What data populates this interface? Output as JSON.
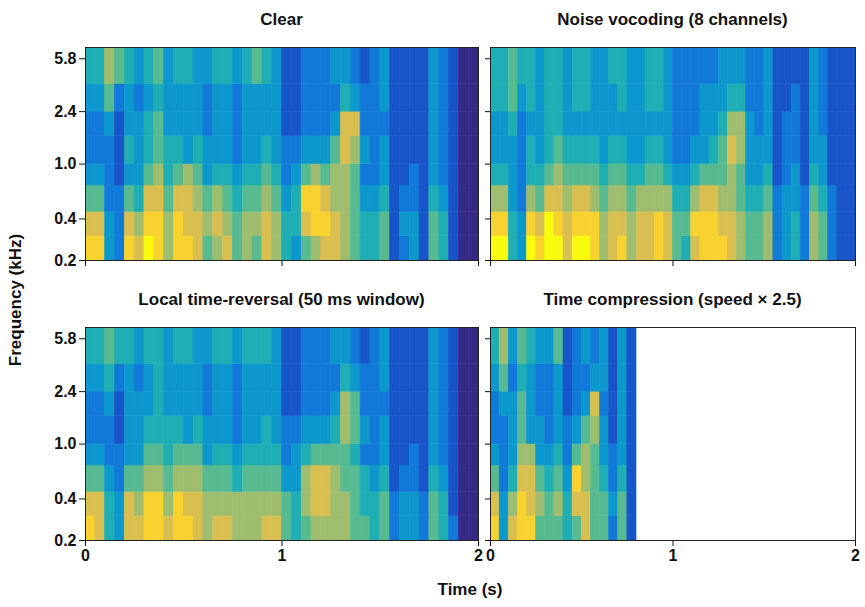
{
  "xlabel": "Time (s)",
  "ylabel": "Frequency (kHz)",
  "chart_data": [
    {
      "type": "heatmap",
      "title": "Clear",
      "log": "y",
      "tick_labels": "y",
      "xlim": [
        0,
        2
      ],
      "xticks": [
        0,
        1,
        2
      ],
      "ylim": [
        0.2,
        7.0
      ],
      "yticks": [
        0.2,
        0.4,
        {
          "value": 1.0,
          "label": "1.0"
        },
        2.4,
        5.8
      ],
      "x_edges": [
        0,
        0.05,
        0.1,
        0.15,
        0.2,
        0.25,
        0.3,
        0.35,
        0.4,
        0.45,
        0.5,
        0.55,
        0.6,
        0.65,
        0.7,
        0.75,
        0.8,
        0.85,
        0.9,
        0.95,
        1,
        1.05,
        1.1,
        1.15,
        1.2,
        1.25,
        1.3,
        1.35,
        1.4,
        1.45,
        1.5,
        1.55,
        1.6,
        1.65,
        1.7,
        1.75,
        1.8,
        1.85,
        1.9,
        1.95,
        2
      ],
      "y_edges": [
        0.2,
        0.3,
        0.45,
        0.7,
        1.0,
        1.6,
        2.4,
        3.8,
        7.0
      ],
      "cells": [
        [
          8,
          8,
          3,
          2,
          8,
          7,
          9,
          8,
          6,
          8,
          8,
          7,
          5,
          6,
          7,
          5,
          6,
          5,
          7,
          6,
          4,
          3,
          5,
          6,
          7,
          7,
          6,
          5,
          4,
          4,
          5,
          1,
          2,
          3,
          1,
          5,
          4,
          1,
          0,
          0
        ],
        [
          7,
          7,
          3,
          2,
          7,
          6,
          8,
          8,
          6,
          8,
          7,
          7,
          6,
          7,
          6,
          5,
          6,
          6,
          7,
          6,
          4,
          4,
          7,
          8,
          8,
          7,
          6,
          5,
          4,
          4,
          5,
          1,
          3,
          3,
          1,
          5,
          4,
          1,
          0,
          0
        ],
        [
          5,
          5,
          2,
          2,
          5,
          4,
          7,
          7,
          5,
          7,
          7,
          6,
          5,
          6,
          5,
          4,
          5,
          5,
          6,
          5,
          3,
          4,
          8,
          8,
          7,
          6,
          6,
          5,
          3,
          3,
          4,
          1,
          2,
          2,
          1,
          4,
          3,
          1,
          0,
          0
        ],
        [
          3,
          3,
          2,
          1,
          3,
          3,
          5,
          6,
          4,
          5,
          6,
          5,
          3,
          4,
          4,
          3,
          4,
          4,
          5,
          4,
          2,
          3,
          5,
          6,
          5,
          6,
          6,
          5,
          2,
          2,
          3,
          1,
          1,
          2,
          1,
          3,
          2,
          1,
          0,
          0
        ],
        [
          2,
          2,
          2,
          1,
          4,
          3,
          4,
          5,
          4,
          4,
          3,
          4,
          3,
          3,
          3,
          2,
          3,
          3,
          4,
          3,
          2,
          2,
          3,
          3,
          3,
          5,
          7,
          6,
          3,
          2,
          3,
          1,
          1,
          1,
          1,
          3,
          2,
          1,
          0,
          0
        ],
        [
          2,
          2,
          3,
          1,
          3,
          3,
          4,
          5,
          3,
          3,
          3,
          3,
          2,
          3,
          3,
          2,
          3,
          3,
          3,
          3,
          1,
          1,
          2,
          2,
          2,
          3,
          7,
          7,
          2,
          2,
          2,
          1,
          1,
          1,
          1,
          3,
          2,
          1,
          0,
          0
        ],
        [
          3,
          3,
          5,
          2,
          3,
          2,
          3,
          4,
          3,
          3,
          3,
          3,
          2,
          3,
          3,
          2,
          3,
          3,
          3,
          3,
          1,
          1,
          2,
          2,
          2,
          2,
          4,
          3,
          2,
          2,
          3,
          1,
          1,
          1,
          1,
          3,
          2,
          1,
          0,
          0
        ],
        [
          4,
          4,
          6,
          5,
          4,
          3,
          4,
          5,
          3,
          4,
          4,
          3,
          3,
          4,
          4,
          3,
          4,
          5,
          4,
          3,
          1,
          1,
          2,
          2,
          2,
          3,
          3,
          2,
          1,
          2,
          3,
          1,
          1,
          1,
          1,
          3,
          2,
          1,
          0,
          0
        ]
      ]
    },
    {
      "type": "heatmap",
      "title": "Noise vocoding (8 channels)",
      "log": "y",
      "tick_labels": false,
      "xlim": [
        0,
        2
      ],
      "xticks": [
        0,
        1,
        2
      ],
      "ylim": [
        0.2,
        7.0
      ],
      "yticks": [
        0.2,
        0.4,
        {
          "value": 1.0,
          "label": "1.0"
        },
        2.4,
        5.8
      ],
      "x_edges": [
        0,
        0.05,
        0.1,
        0.15,
        0.2,
        0.25,
        0.3,
        0.35,
        0.4,
        0.45,
        0.5,
        0.55,
        0.6,
        0.65,
        0.7,
        0.75,
        0.8,
        0.85,
        0.9,
        0.95,
        1,
        1.05,
        1.1,
        1.15,
        1.2,
        1.25,
        1.3,
        1.35,
        1.4,
        1.45,
        1.5,
        1.55,
        1.6,
        1.65,
        1.7,
        1.75,
        1.8,
        1.85,
        1.9,
        1.95,
        2
      ],
      "y_edges": [
        0.2,
        0.3,
        0.45,
        0.7,
        1.0,
        1.6,
        2.4,
        3.8,
        7.0
      ],
      "cells": [
        [
          9,
          9,
          4,
          3,
          9,
          8,
          9,
          9,
          7,
          9,
          9,
          8,
          6,
          7,
          8,
          6,
          7,
          7,
          8,
          7,
          5,
          4,
          7,
          8,
          8,
          8,
          7,
          6,
          5,
          5,
          6,
          2,
          3,
          4,
          2,
          6,
          5,
          2,
          1,
          1
        ],
        [
          8,
          8,
          4,
          3,
          8,
          7,
          9,
          8,
          7,
          8,
          8,
          8,
          6,
          7,
          7,
          6,
          7,
          7,
          8,
          7,
          5,
          5,
          8,
          8,
          8,
          7,
          7,
          6,
          5,
          5,
          6,
          2,
          3,
          4,
          2,
          6,
          5,
          2,
          1,
          1
        ],
        [
          6,
          6,
          3,
          2,
          6,
          5,
          7,
          7,
          6,
          7,
          7,
          6,
          5,
          6,
          6,
          5,
          6,
          6,
          6,
          6,
          4,
          4,
          6,
          7,
          7,
          6,
          6,
          5,
          4,
          4,
          5,
          2,
          3,
          3,
          2,
          5,
          4,
          2,
          1,
          1
        ],
        [
          4,
          4,
          3,
          2,
          4,
          4,
          5,
          6,
          5,
          5,
          5,
          5,
          4,
          5,
          5,
          4,
          4,
          5,
          5,
          4,
          3,
          3,
          4,
          5,
          5,
          5,
          6,
          5,
          3,
          3,
          4,
          1,
          2,
          3,
          1,
          4,
          3,
          1,
          1,
          1
        ],
        [
          3,
          3,
          3,
          2,
          4,
          3,
          4,
          5,
          4,
          4,
          4,
          4,
          3,
          4,
          4,
          3,
          3,
          4,
          4,
          3,
          2,
          2,
          3,
          3,
          4,
          5,
          7,
          6,
          3,
          3,
          3,
          1,
          2,
          2,
          1,
          3,
          3,
          1,
          1,
          1
        ],
        [
          3,
          3,
          4,
          2,
          3,
          3,
          4,
          4,
          3,
          3,
          3,
          3,
          3,
          3,
          3,
          3,
          3,
          3,
          3,
          3,
          2,
          2,
          2,
          3,
          3,
          4,
          6,
          6,
          3,
          2,
          3,
          1,
          2,
          2,
          1,
          3,
          2,
          1,
          1,
          1
        ],
        [
          4,
          4,
          5,
          3,
          4,
          3,
          4,
          4,
          3,
          4,
          4,
          3,
          3,
          3,
          4,
          3,
          3,
          4,
          4,
          3,
          2,
          2,
          2,
          3,
          3,
          3,
          4,
          4,
          2,
          2,
          3,
          1,
          1,
          2,
          1,
          3,
          2,
          1,
          1,
          1
        ],
        [
          4,
          4,
          5,
          4,
          4,
          3,
          4,
          4,
          3,
          4,
          4,
          3,
          3,
          4,
          4,
          3,
          3,
          4,
          4,
          3,
          2,
          2,
          2,
          2,
          2,
          3,
          3,
          3,
          2,
          2,
          3,
          1,
          1,
          1,
          1,
          3,
          2,
          1,
          1,
          1
        ]
      ]
    },
    {
      "type": "heatmap",
      "title": "Local time-reversal (50 ms window)",
      "log": "y",
      "tick_labels": true,
      "xlim": [
        0,
        2
      ],
      "xticks": [
        0,
        1,
        2
      ],
      "ylim": [
        0.2,
        7.0
      ],
      "yticks": [
        0.2,
        0.4,
        {
          "value": 1.0,
          "label": "1.0"
        },
        2.4,
        5.8
      ],
      "x_edges": [
        0,
        0.05,
        0.1,
        0.15,
        0.2,
        0.25,
        0.3,
        0.35,
        0.4,
        0.45,
        0.5,
        0.55,
        0.6,
        0.65,
        0.7,
        0.75,
        0.8,
        0.85,
        0.9,
        0.95,
        1,
        1.05,
        1.1,
        1.15,
        1.2,
        1.25,
        1.3,
        1.35,
        1.4,
        1.45,
        1.5,
        1.55,
        1.6,
        1.65,
        1.7,
        1.75,
        1.8,
        1.85,
        1.9,
        1.95,
        2
      ],
      "y_edges": [
        0.2,
        0.3,
        0.45,
        0.7,
        1.0,
        1.6,
        2.4,
        3.8,
        7.0
      ],
      "cells": [
        [
          8,
          7,
          4,
          3,
          7,
          7,
          8,
          8,
          7,
          8,
          8,
          7,
          6,
          7,
          7,
          6,
          6,
          6,
          7,
          7,
          5,
          4,
          5,
          6,
          6,
          6,
          6,
          5,
          5,
          4,
          5,
          2,
          3,
          3,
          2,
          5,
          4,
          2,
          0,
          0
        ],
        [
          7,
          7,
          4,
          3,
          7,
          6,
          8,
          8,
          6,
          8,
          7,
          7,
          6,
          6,
          6,
          6,
          6,
          6,
          6,
          6,
          5,
          4,
          6,
          7,
          7,
          6,
          6,
          5,
          4,
          4,
          5,
          2,
          3,
          3,
          2,
          5,
          4,
          1,
          0,
          0
        ],
        [
          5,
          5,
          3,
          2,
          5,
          5,
          6,
          6,
          5,
          6,
          6,
          6,
          5,
          5,
          5,
          4,
          5,
          5,
          5,
          5,
          3,
          3,
          6,
          7,
          7,
          6,
          5,
          5,
          4,
          3,
          4,
          1,
          2,
          2,
          1,
          4,
          3,
          1,
          0,
          0
        ],
        [
          3,
          3,
          2,
          2,
          3,
          3,
          5,
          5,
          4,
          5,
          5,
          5,
          3,
          4,
          4,
          3,
          4,
          4,
          4,
          4,
          2,
          3,
          4,
          5,
          5,
          5,
          5,
          4,
          2,
          2,
          3,
          1,
          1,
          2,
          1,
          3,
          2,
          1,
          0,
          0
        ],
        [
          2,
          2,
          2,
          1,
          3,
          3,
          4,
          4,
          4,
          4,
          3,
          4,
          3,
          3,
          3,
          2,
          3,
          3,
          4,
          3,
          2,
          2,
          3,
          3,
          3,
          4,
          6,
          5,
          3,
          2,
          3,
          1,
          1,
          1,
          1,
          3,
          2,
          1,
          0,
          0
        ],
        [
          2,
          2,
          3,
          1,
          3,
          3,
          3,
          4,
          3,
          3,
          3,
          3,
          2,
          3,
          3,
          2,
          3,
          3,
          3,
          3,
          1,
          1,
          2,
          2,
          2,
          3,
          6,
          5,
          2,
          2,
          2,
          1,
          1,
          1,
          1,
          3,
          2,
          1,
          0,
          0
        ],
        [
          3,
          3,
          4,
          2,
          3,
          2,
          3,
          4,
          3,
          3,
          3,
          3,
          2,
          3,
          3,
          2,
          3,
          3,
          3,
          3,
          1,
          1,
          2,
          2,
          2,
          2,
          4,
          3,
          2,
          2,
          3,
          1,
          1,
          1,
          1,
          3,
          2,
          1,
          0,
          0
        ],
        [
          4,
          4,
          5,
          4,
          4,
          3,
          4,
          4,
          3,
          4,
          4,
          3,
          3,
          4,
          4,
          3,
          4,
          4,
          4,
          3,
          1,
          1,
          2,
          2,
          2,
          3,
          3,
          2,
          1,
          2,
          3,
          1,
          1,
          1,
          1,
          3,
          2,
          1,
          0,
          0
        ]
      ]
    },
    {
      "type": "heatmap",
      "title": "Time compression (speed × 2.5)",
      "log": "y",
      "tick_labels": "x",
      "xlim": [
        0,
        2
      ],
      "xticks": [
        0,
        1,
        2
      ],
      "ylim": [
        0.2,
        7.0
      ],
      "yticks": [
        0.2,
        0.4,
        {
          "value": 1.0,
          "label": "1.0"
        },
        2.4,
        5.8
      ],
      "x_edges": [
        0,
        0.05,
        0.1,
        0.15,
        0.2,
        0.25,
        0.3,
        0.35,
        0.4,
        0.45,
        0.5,
        0.55,
        0.6,
        0.65,
        0.7,
        0.75,
        0.8
      ],
      "y_edges": [
        0.2,
        0.3,
        0.45,
        0.7,
        1.0,
        1.6,
        2.4,
        3.8,
        7.0
      ],
      "cells": [
        [
          8,
          3,
          7,
          8,
          8,
          5,
          5,
          5,
          4,
          5,
          7,
          5,
          5,
          2,
          5,
          1
        ],
        [
          7,
          3,
          6,
          8,
          7,
          6,
          5,
          6,
          4,
          7,
          7,
          5,
          5,
          3,
          5,
          1
        ],
        [
          5,
          2,
          4,
          7,
          7,
          5,
          4,
          5,
          3,
          8,
          6,
          5,
          4,
          2,
          4,
          1
        ],
        [
          3,
          2,
          3,
          6,
          6,
          3,
          3,
          4,
          2,
          5,
          6,
          5,
          3,
          2,
          3,
          1
        ],
        [
          2,
          2,
          3,
          5,
          3,
          3,
          2,
          3,
          2,
          3,
          5,
          6,
          3,
          1,
          3,
          1
        ],
        [
          2,
          3,
          3,
          5,
          3,
          2,
          2,
          3,
          1,
          2,
          3,
          7,
          2,
          1,
          3,
          1
        ],
        [
          3,
          5,
          2,
          4,
          3,
          2,
          2,
          3,
          1,
          2,
          2,
          3,
          3,
          1,
          3,
          1
        ],
        [
          4,
          6,
          3,
          5,
          4,
          3,
          3,
          5,
          1,
          2,
          3,
          2,
          3,
          1,
          3,
          1
        ]
      ]
    }
  ]
}
